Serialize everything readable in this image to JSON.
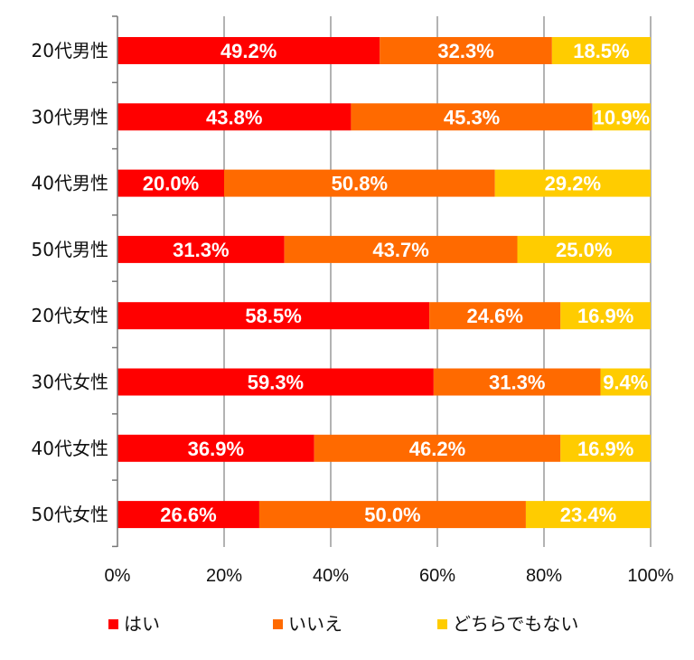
{
  "chart_data": {
    "type": "bar",
    "orientation": "horizontal",
    "stacked": true,
    "categories": [
      "20代男性",
      "30代男性",
      "40代男性",
      "50代男性",
      "20代女性",
      "30代女性",
      "40代女性",
      "50代女性"
    ],
    "series": [
      {
        "name": "はい",
        "color": "#ff0000",
        "values": [
          49.2,
          43.8,
          20.0,
          31.3,
          58.5,
          59.3,
          36.9,
          26.6
        ]
      },
      {
        "name": "いいえ",
        "color": "#ff6a00",
        "values": [
          32.3,
          45.3,
          50.8,
          43.7,
          24.6,
          31.3,
          46.2,
          50.0
        ]
      },
      {
        "name": "どちらでもない",
        "color": "#ffcc00",
        "values": [
          18.5,
          10.9,
          29.2,
          25.0,
          16.9,
          9.4,
          16.9,
          23.4
        ]
      }
    ],
    "data_labels": [
      [
        "49.2%",
        "43.8%",
        "20.0%",
        "31.3%",
        "58.5%",
        "59.3%",
        "36.9%",
        "26.6%"
      ],
      [
        "32.3%",
        "45.3%",
        "50.8%",
        "43.7%",
        "24.6%",
        "31.3%",
        "46.2%",
        "50.0%"
      ],
      [
        "18.5%",
        "10.9%",
        "29.2%",
        "25.0%",
        "16.9%",
        "9.4%",
        "16.9%",
        "23.4%"
      ]
    ],
    "x_ticks": [
      0,
      20,
      40,
      60,
      80,
      100
    ],
    "x_tick_labels": [
      "0%",
      "20%",
      "40%",
      "60%",
      "80%",
      "100%"
    ],
    "xlim": [
      0,
      100
    ],
    "grid": true,
    "legend_position": "bottom",
    "title": "",
    "xlabel": "",
    "ylabel": ""
  }
}
